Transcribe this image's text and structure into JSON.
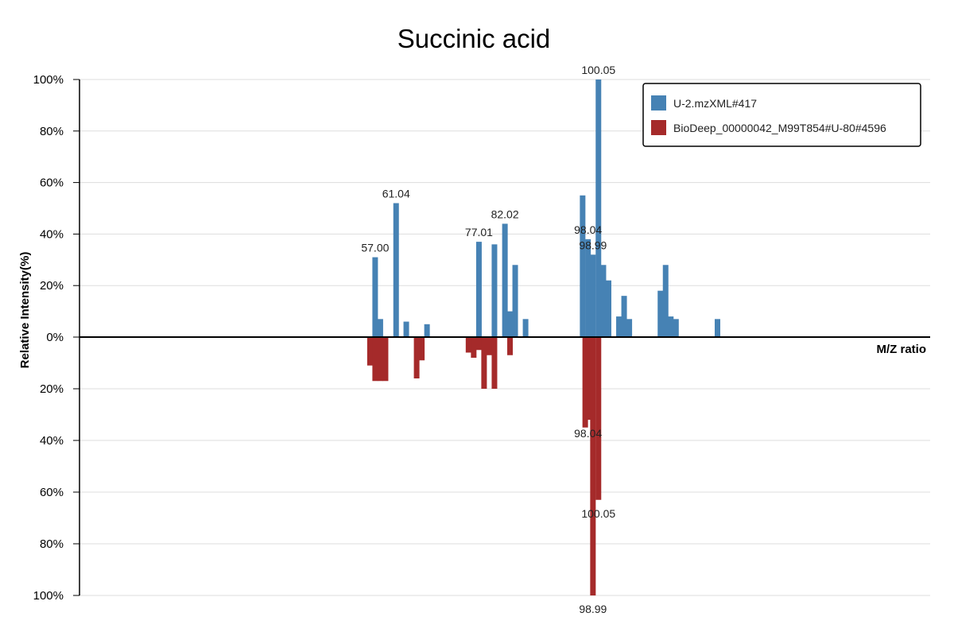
{
  "chart_data": {
    "type": "bar",
    "title": "Succinic acid",
    "xlabel": "M/Z ratio",
    "ylabel": "Relative Intensity(%)",
    "ylim": [
      -100,
      100
    ],
    "xlim": [
      0,
      164
    ],
    "grid": true,
    "legend_position": "top-right",
    "y_ticks": [
      {
        "value": 100,
        "label": "100%"
      },
      {
        "value": 80,
        "label": "80%"
      },
      {
        "value": 60,
        "label": "60%"
      },
      {
        "value": 40,
        "label": "40%"
      },
      {
        "value": 20,
        "label": "20%"
      },
      {
        "value": 0,
        "label": "0%"
      },
      {
        "value": -20,
        "label": "20%"
      },
      {
        "value": -40,
        "label": "40%"
      },
      {
        "value": -60,
        "label": "60%"
      },
      {
        "value": -80,
        "label": "80%"
      },
      {
        "value": -100,
        "label": "100%"
      }
    ],
    "series": [
      {
        "name": "U-2.mzXML#417",
        "color": "#4682b4",
        "direction": "up",
        "peaks": [
          {
            "mz": 57.0,
            "value": 31,
            "label": "57.00"
          },
          {
            "mz": 58.0,
            "value": 7
          },
          {
            "mz": 61.04,
            "value": 52,
            "label": "61.04"
          },
          {
            "mz": 63.0,
            "value": 6
          },
          {
            "mz": 67.0,
            "value": 5
          },
          {
            "mz": 77.01,
            "value": 37,
            "label": "77.01"
          },
          {
            "mz": 80.0,
            "value": 36
          },
          {
            "mz": 82.02,
            "value": 44,
            "label": "82.02"
          },
          {
            "mz": 83.0,
            "value": 10
          },
          {
            "mz": 84.0,
            "value": 28
          },
          {
            "mz": 86.0,
            "value": 7
          },
          {
            "mz": 97.0,
            "value": 55
          },
          {
            "mz": 98.04,
            "value": 38,
            "label": "98.04"
          },
          {
            "mz": 98.99,
            "value": 32,
            "label": "98.99"
          },
          {
            "mz": 100.05,
            "value": 100,
            "label": "100.05"
          },
          {
            "mz": 101.0,
            "value": 28
          },
          {
            "mz": 102.0,
            "value": 22
          },
          {
            "mz": 104.0,
            "value": 8
          },
          {
            "mz": 105.0,
            "value": 16
          },
          {
            "mz": 106.0,
            "value": 7
          },
          {
            "mz": 112.0,
            "value": 18
          },
          {
            "mz": 113.0,
            "value": 28
          },
          {
            "mz": 114.0,
            "value": 8
          },
          {
            "mz": 115.0,
            "value": 7
          },
          {
            "mz": 123.0,
            "value": 7
          }
        ]
      },
      {
        "name": "BioDeep_00000042_M99T854#U-80#4596",
        "color": "#a52a2a",
        "direction": "down",
        "peaks": [
          {
            "mz": 56.0,
            "value": 11
          },
          {
            "mz": 57.0,
            "value": 17
          },
          {
            "mz": 58.0,
            "value": 17
          },
          {
            "mz": 59.0,
            "value": 17
          },
          {
            "mz": 65.0,
            "value": 16
          },
          {
            "mz": 66.0,
            "value": 9
          },
          {
            "mz": 75.0,
            "value": 6
          },
          {
            "mz": 76.0,
            "value": 8
          },
          {
            "mz": 77.0,
            "value": 5
          },
          {
            "mz": 78.0,
            "value": 20
          },
          {
            "mz": 79.0,
            "value": 7
          },
          {
            "mz": 80.0,
            "value": 20
          },
          {
            "mz": 83.0,
            "value": 7
          },
          {
            "mz": 97.5,
            "value": 35
          },
          {
            "mz": 98.04,
            "value": 32,
            "label": "98.04"
          },
          {
            "mz": 98.99,
            "value": 100,
            "label": "98.99"
          },
          {
            "mz": 100.05,
            "value": 63,
            "label": "100.05"
          }
        ]
      }
    ]
  }
}
